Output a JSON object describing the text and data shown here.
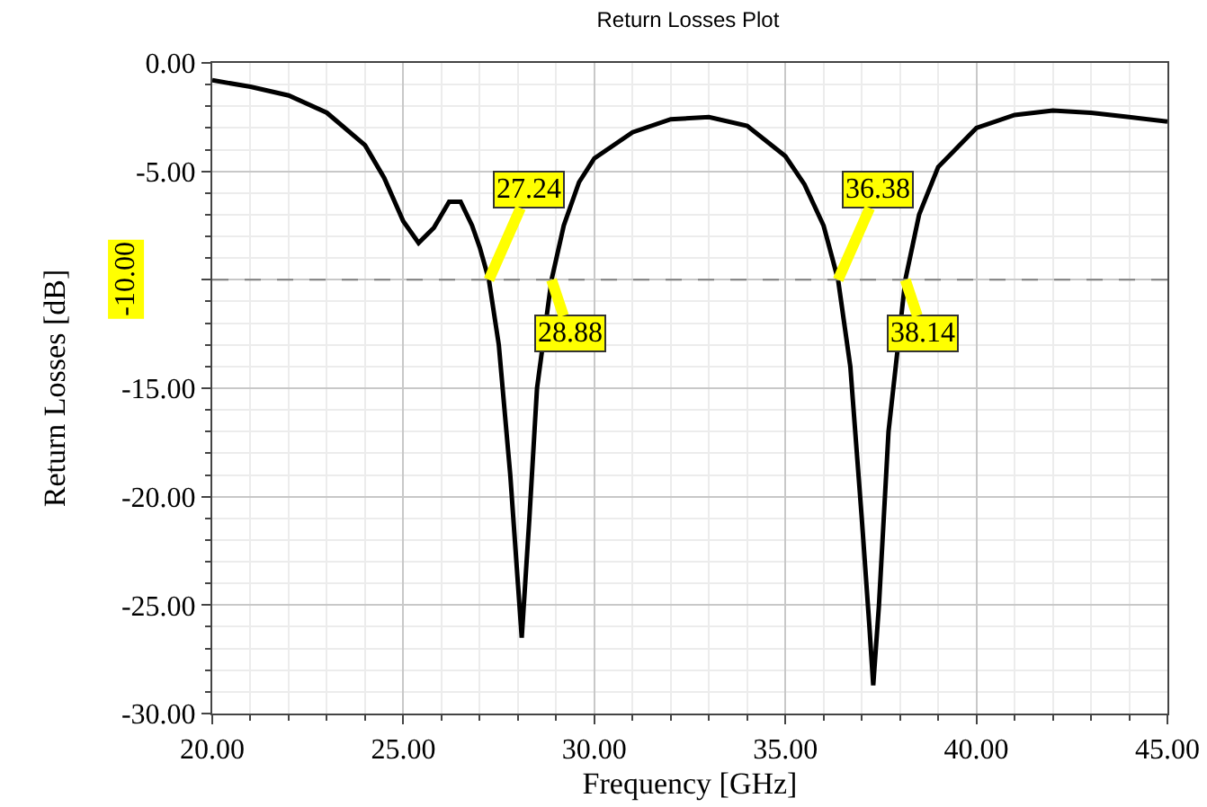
{
  "chart_data": {
    "type": "line",
    "title": "Return Losses Plot",
    "xlabel": "Frequency [GHz]",
    "ylabel": "Return Losses [dB]",
    "x": [
      20,
      21,
      22,
      23,
      24,
      24.5,
      25,
      25.4,
      25.8,
      26.2,
      26.5,
      26.8,
      27,
      27.24,
      27.5,
      27.8,
      28,
      28.1,
      28.3,
      28.5,
      28.88,
      29.2,
      29.6,
      30,
      31,
      32,
      33,
      34,
      35,
      35.5,
      36,
      36.38,
      36.7,
      37,
      37.2,
      37.3,
      37.45,
      37.7,
      38.14,
      38.5,
      39,
      40,
      41,
      42,
      43,
      44,
      45
    ],
    "series": [
      {
        "color": "#000000",
        "values": [
          -0.8,
          -1.1,
          -1.5,
          -2.3,
          -3.8,
          -5.3,
          -7.3,
          -8.3,
          -7.6,
          -6.4,
          -6.4,
          -7.5,
          -8.5,
          -10,
          -13,
          -19,
          -24,
          -26.5,
          -21,
          -15,
          -10,
          -7.5,
          -5.5,
          -4.4,
          -3.2,
          -2.6,
          -2.5,
          -2.9,
          -4.3,
          -5.6,
          -7.5,
          -10,
          -14,
          -21,
          -26,
          -28.7,
          -25,
          -17,
          -10,
          -7,
          -4.8,
          -3,
          -2.4,
          -2.2,
          -2.3,
          -2.5,
          -2.7
        ]
      }
    ],
    "xlim": [
      20,
      45
    ],
    "xticks": [
      {
        "value": 20,
        "label": "20.00"
      },
      {
        "value": 25,
        "label": "25.00"
      },
      {
        "value": 30,
        "label": "30.00"
      },
      {
        "value": 35,
        "label": "35.00"
      },
      {
        "value": 40,
        "label": "40.00"
      },
      {
        "value": 45,
        "label": "45.00"
      }
    ],
    "ylim": [
      -30,
      0
    ],
    "yticks": [
      {
        "value": 0,
        "label": "0.00"
      },
      {
        "value": -5,
        "label": "-5.00"
      },
      {
        "value": -10,
        "label": null
      },
      {
        "value": -15,
        "label": "-15.00"
      },
      {
        "value": -20,
        "label": "-20.00"
      },
      {
        "value": -25,
        "label": "-25.00"
      },
      {
        "value": -30,
        "label": "-30.00"
      }
    ],
    "ref_lines": [
      {
        "axis": "y",
        "value": -10,
        "label": "-10.00",
        "color": "#808080",
        "line_style": "dashed"
      }
    ],
    "annotations": [
      {
        "text": "27.24",
        "x": 27.24,
        "y": -10
      },
      {
        "text": "28.88",
        "x": 28.88,
        "y": -10
      },
      {
        "text": "36.38",
        "x": 36.38,
        "y": -10
      },
      {
        "text": "38.14",
        "x": 38.14,
        "y": -10
      }
    ],
    "grid": true,
    "marker": "none",
    "line_style": "solid"
  }
}
